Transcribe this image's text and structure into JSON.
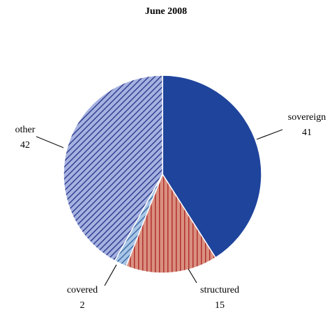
{
  "chart_data": {
    "type": "pie",
    "title": "June 2008",
    "slices": [
      {
        "label": "sovereign",
        "value": 41,
        "value_label": "41",
        "color": "#1f449c",
        "pattern": "solid"
      },
      {
        "label": "structured",
        "value": 15,
        "value_label": "15",
        "color": "#d99080",
        "stripe_color": "#b02a2a",
        "pattern": "vertical-stripes"
      },
      {
        "label": "covered",
        "value": 2,
        "value_label": "2",
        "color": "#a9c6e6",
        "stripe_color": "#3a6aa5",
        "pattern": "diagonal-stripes"
      },
      {
        "label": "other",
        "value": 42,
        "value_label": "42",
        "color": "#a5b1e0",
        "stripe_color": "#2b3a8c",
        "pattern": "diagonal-stripes"
      }
    ],
    "start_angle": "12 o'clock",
    "direction": "clockwise"
  }
}
